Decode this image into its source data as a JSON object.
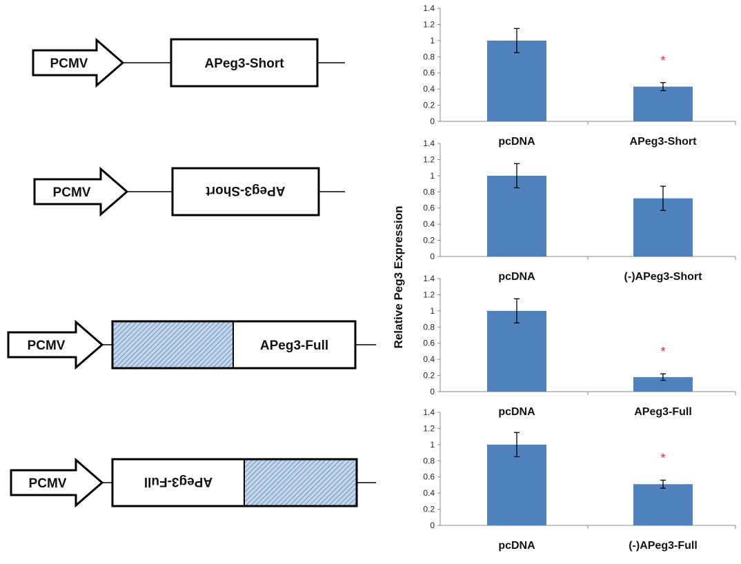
{
  "figure": {
    "y_axis_label": "Relative Peg3 Expression",
    "constructs": [
      {
        "promoter": "PCMV",
        "insert": "APeg3-Short",
        "orientation": "sense",
        "has_hatched_region": false
      },
      {
        "promoter": "PCMV",
        "insert": "APeg3-Short",
        "orientation": "antisense",
        "has_hatched_region": false
      },
      {
        "promoter": "PCMV",
        "insert": "APeg3-Full",
        "orientation": "sense",
        "has_hatched_region": true
      },
      {
        "promoter": "PCMV",
        "insert": "APeg3-Full",
        "orientation": "antisense",
        "has_hatched_region": true
      }
    ]
  },
  "colors": {
    "bar": "#4f81bd",
    "significance": "#e8242a",
    "hatch_fill": "#c5d5ea",
    "hatch_line": "#4f81bd"
  },
  "chart_data": [
    {
      "type": "bar",
      "categories": [
        "pcDNA",
        "APeg3-Short"
      ],
      "values": [
        1.0,
        0.43
      ],
      "error": [
        0.15,
        0.05
      ],
      "significant": [
        false,
        true
      ],
      "significance_marker": "*",
      "ylim": [
        0,
        1.4
      ],
      "yticks": [
        "0",
        "0.2",
        "0.4",
        "0.6",
        "0.8",
        "1",
        "1.2",
        "1.4"
      ]
    },
    {
      "type": "bar",
      "categories": [
        "pcDNA",
        "(-)APeg3-Short"
      ],
      "values": [
        1.0,
        0.72
      ],
      "error": [
        0.15,
        0.15
      ],
      "significant": [
        false,
        false
      ],
      "significance_marker": "*",
      "ylim": [
        0,
        1.4
      ],
      "yticks": [
        "0",
        "0.2",
        "0.4",
        "0.6",
        "0.8",
        "1",
        "1.2",
        "1.4"
      ]
    },
    {
      "type": "bar",
      "categories": [
        "pcDNA",
        "APeg3-Full"
      ],
      "values": [
        1.0,
        0.18
      ],
      "error": [
        0.15,
        0.04
      ],
      "significant": [
        false,
        true
      ],
      "significance_marker": "*",
      "ylim": [
        0,
        1.4
      ],
      "yticks": [
        "0",
        "0.2",
        "0.4",
        "0.6",
        "0.8",
        "1",
        "1.2",
        "1.4"
      ]
    },
    {
      "type": "bar",
      "categories": [
        "pcDNA",
        "(-)APeg3-Full"
      ],
      "values": [
        1.0,
        0.51
      ],
      "error": [
        0.15,
        0.05
      ],
      "significant": [
        false,
        true
      ],
      "significance_marker": "*",
      "ylim": [
        0,
        1.4
      ],
      "yticks": [
        "0",
        "0.2",
        "0.4",
        "0.6",
        "0.8",
        "1",
        "1.2",
        "1.4"
      ]
    }
  ]
}
